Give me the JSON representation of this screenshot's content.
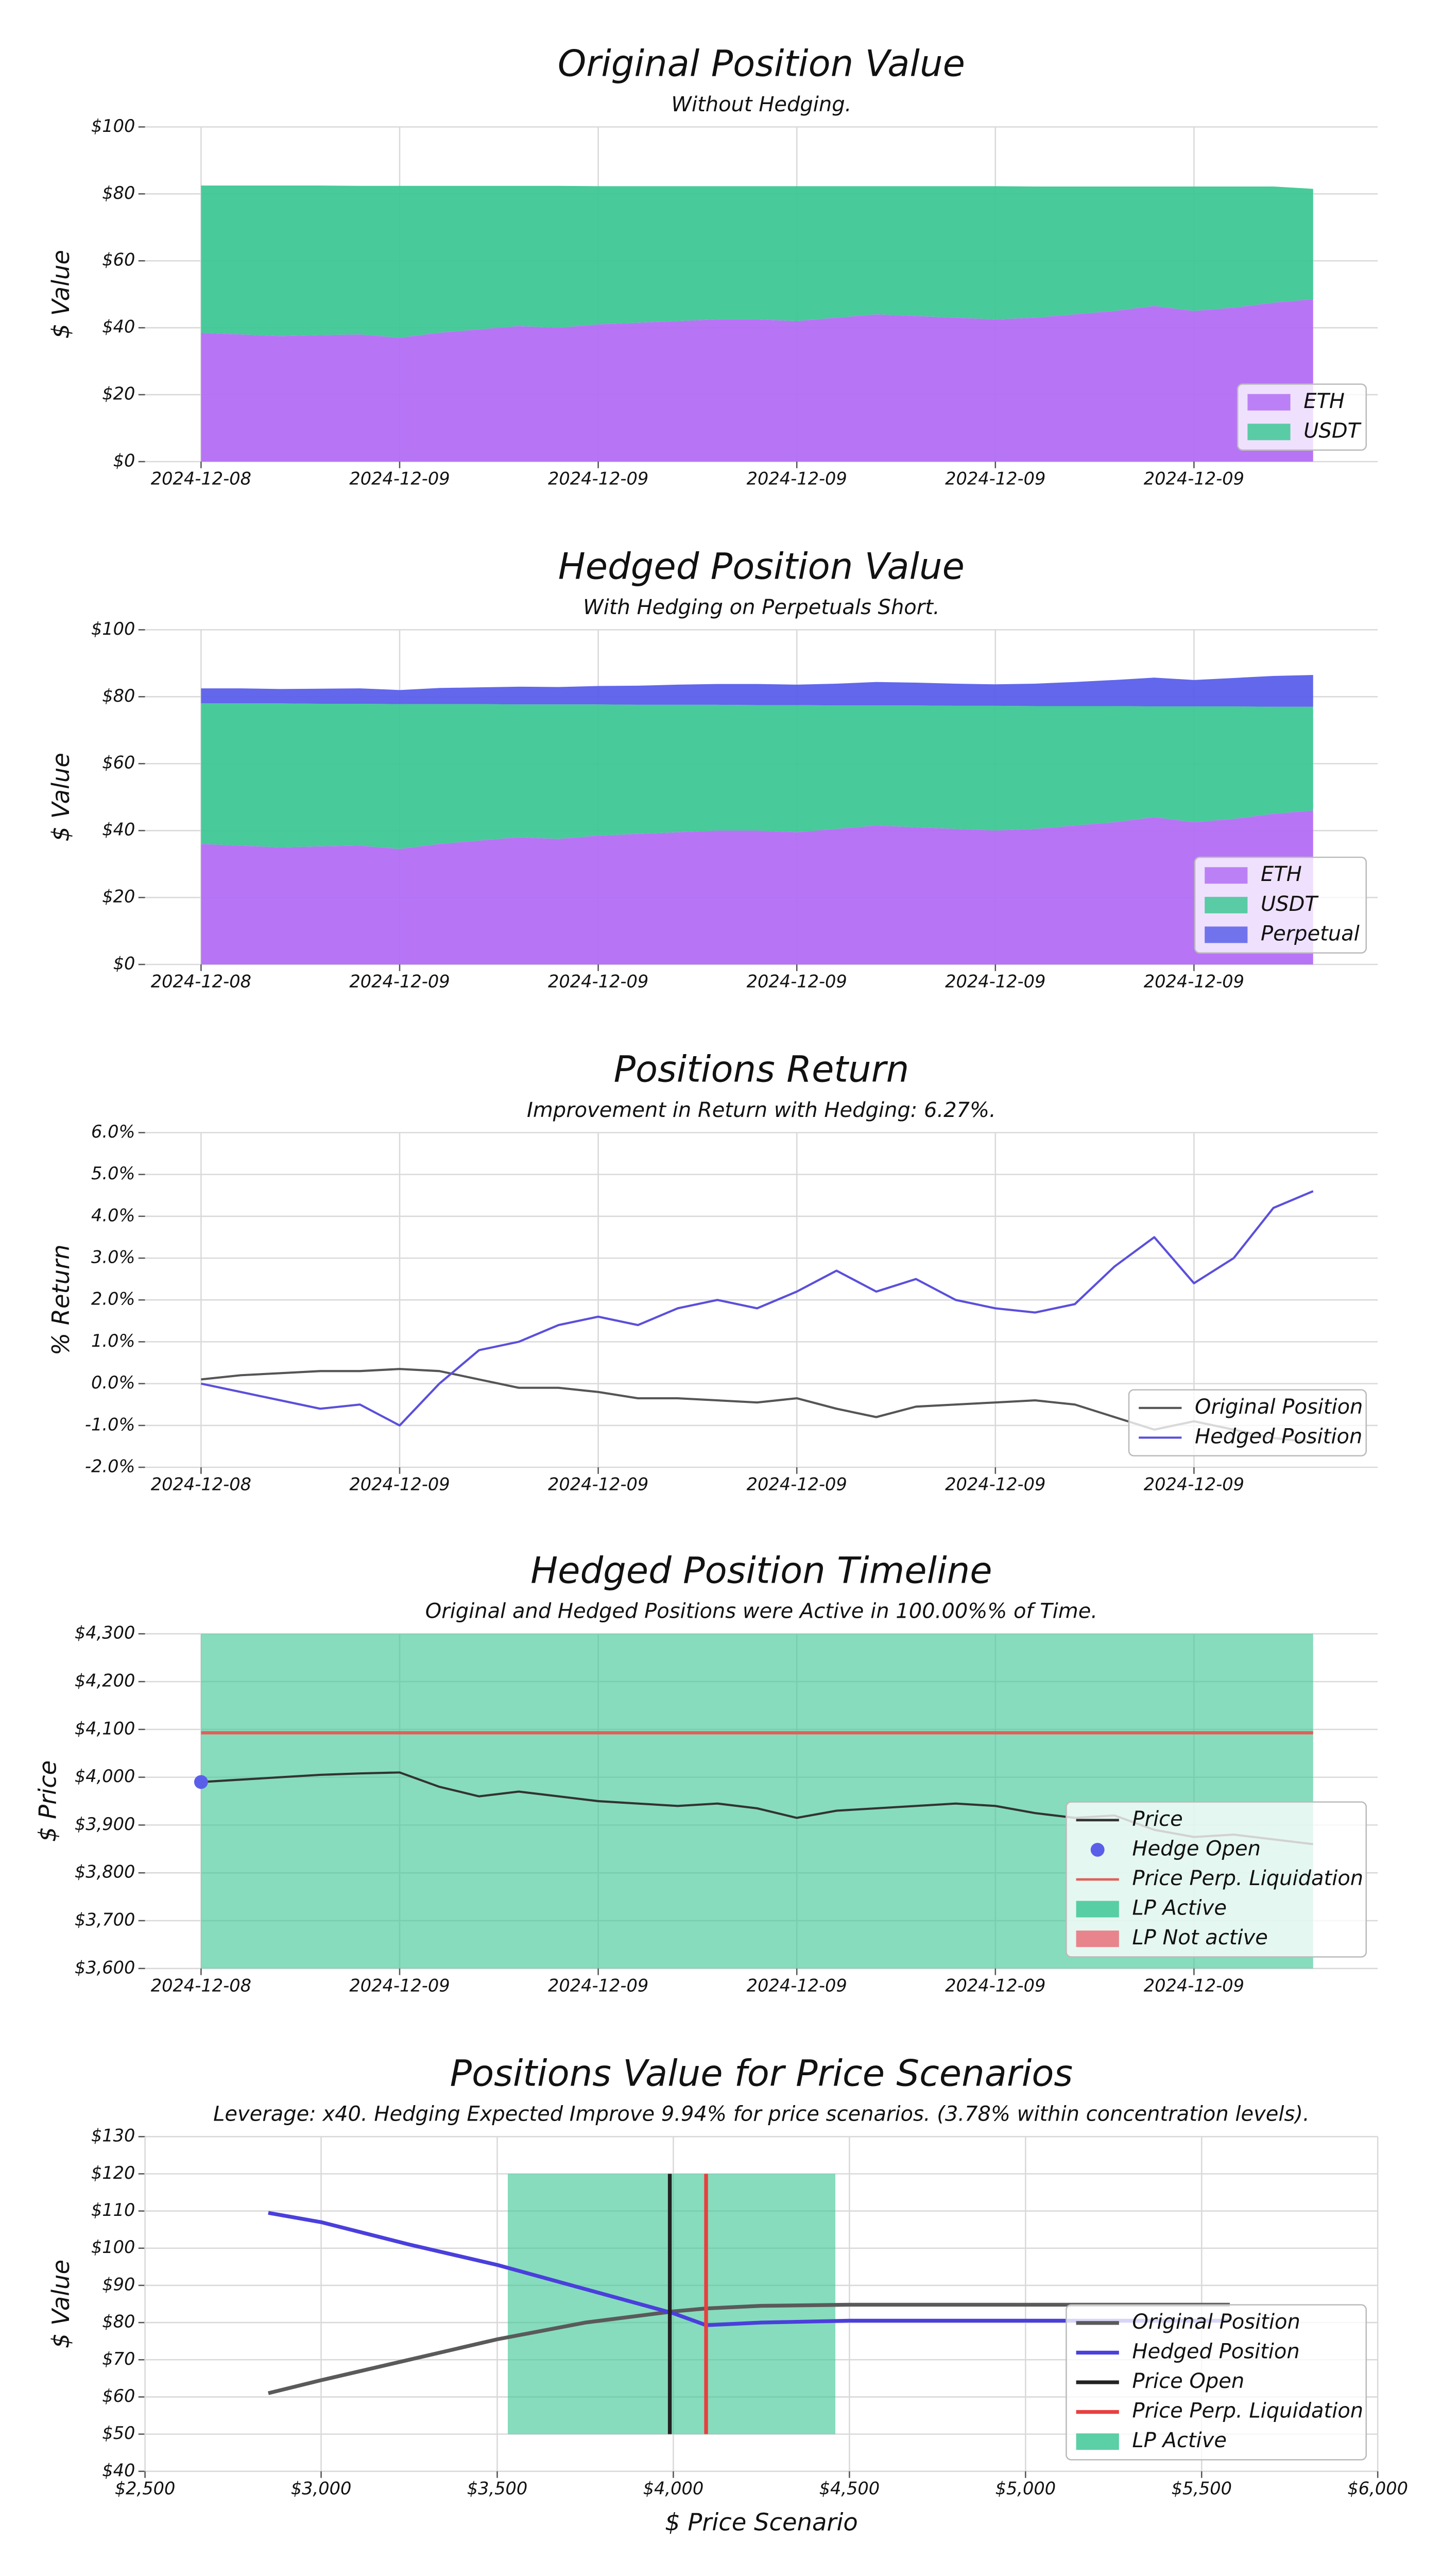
{
  "chart_data": [
    {
      "type": "area",
      "title": "Original Position Value",
      "subtitle": "Without Hedging.",
      "ylabel": "$ Value",
      "categories": [
        "2024-12-08",
        null,
        null,
        null,
        null,
        "2024-12-09",
        null,
        null,
        null,
        null,
        "2024-12-09",
        null,
        null,
        null,
        null,
        "2024-12-09",
        null,
        null,
        null,
        null,
        "2024-12-09",
        null,
        null,
        null,
        null,
        "2024-12-09",
        null,
        null,
        null
      ],
      "series": [
        {
          "name": "ETH",
          "color": "#b36ef5",
          "values": [
            38.5,
            38,
            37.5,
            37.8,
            38,
            37,
            38.5,
            39.5,
            40.5,
            40,
            41,
            41.5,
            42,
            42.5,
            42.5,
            42,
            43,
            44,
            43.5,
            43,
            42.5,
            43,
            44,
            45,
            46.5,
            45,
            46,
            47.5,
            48.5
          ]
        },
        {
          "name": "USDT",
          "color": "#3ec795",
          "values": [
            44,
            44.5,
            45,
            44.7,
            44.4,
            45.4,
            43.9,
            42.9,
            41.9,
            42.4,
            41.3,
            40.8,
            40.3,
            39.8,
            39.8,
            40.3,
            39.3,
            38.3,
            38.8,
            39.3,
            39.8,
            39.2,
            38.2,
            37.2,
            35.7,
            37.2,
            36.2,
            34.7,
            33
          ]
        }
      ],
      "ylim": [
        0,
        100
      ],
      "yticks": [
        {
          "value": 0,
          "label": "$0"
        },
        {
          "value": 20,
          "label": "$20"
        },
        {
          "value": 40,
          "label": "$40"
        },
        {
          "value": 60,
          "label": "$60"
        },
        {
          "value": 80,
          "label": "$80"
        },
        {
          "value": 100,
          "label": "$100"
        }
      ],
      "grid": true,
      "legend": "lower right"
    },
    {
      "type": "area",
      "title": "Hedged Position Value",
      "subtitle": "With Hedging on Perpetuals Short.",
      "ylabel": "$ Value",
      "categories": [
        "2024-12-08",
        null,
        null,
        null,
        null,
        "2024-12-09",
        null,
        null,
        null,
        null,
        "2024-12-09",
        null,
        null,
        null,
        null,
        "2024-12-09",
        null,
        null,
        null,
        null,
        "2024-12-09",
        null,
        null,
        null,
        null,
        "2024-12-09",
        null,
        null,
        null
      ],
      "series": [
        {
          "name": "ETH",
          "color": "#b36ef5",
          "values": [
            36,
            35.5,
            35,
            35.3,
            35.5,
            34.5,
            36,
            37,
            38,
            37.5,
            38.5,
            39,
            39.5,
            40,
            40,
            39.5,
            40.5,
            41.5,
            41,
            40.5,
            40,
            40.5,
            41.5,
            42.5,
            44,
            42.5,
            43.5,
            45,
            46
          ]
        },
        {
          "name": "USDT",
          "color": "#3ec795",
          "values": [
            42,
            42.5,
            43,
            42.6,
            42.4,
            43.3,
            41.8,
            40.8,
            39.7,
            40.2,
            39.2,
            38.6,
            38.1,
            37.6,
            37.5,
            38,
            36.9,
            35.9,
            36.4,
            36.8,
            37.3,
            36.7,
            35.7,
            34.7,
            33.1,
            34.6,
            33.6,
            32,
            31
          ]
        },
        {
          "name": "Perpetual",
          "color": "#5a5fea",
          "values": [
            4.5,
            4.5,
            4.3,
            4.5,
            4.6,
            4.2,
            4.8,
            5,
            5.3,
            5.2,
            5.5,
            5.7,
            6,
            6.2,
            6.3,
            6.1,
            6.5,
            7,
            6.8,
            6.6,
            6.4,
            6.7,
            7.2,
            7.8,
            8.6,
            7.9,
            8.5,
            9.2,
            9.5
          ]
        }
      ],
      "ylim": [
        0,
        100
      ],
      "yticks": [
        {
          "value": 0,
          "label": "$0"
        },
        {
          "value": 20,
          "label": "$20"
        },
        {
          "value": 40,
          "label": "$40"
        },
        {
          "value": 60,
          "label": "$60"
        },
        {
          "value": 80,
          "label": "$80"
        },
        {
          "value": 100,
          "label": "$100"
        }
      ],
      "grid": true,
      "legend": "lower right"
    },
    {
      "type": "line",
      "title": "Positions Return",
      "subtitle": "Improvement in Return with Hedging: 6.27%.",
      "ylabel": "% Return",
      "categories": [
        "2024-12-08",
        null,
        null,
        null,
        null,
        "2024-12-09",
        null,
        null,
        null,
        null,
        "2024-12-09",
        null,
        null,
        null,
        null,
        "2024-12-09",
        null,
        null,
        null,
        null,
        "2024-12-09",
        null,
        null,
        null,
        null,
        "2024-12-09",
        null,
        null,
        null
      ],
      "series": [
        {
          "name": "Original Position",
          "color": "#555555",
          "values": [
            0.1,
            0.2,
            0.25,
            0.3,
            0.3,
            0.35,
            0.3,
            0.1,
            -0.1,
            -0.1,
            -0.2,
            -0.35,
            -0.35,
            -0.4,
            -0.45,
            -0.35,
            -0.6,
            -0.8,
            -0.55,
            -0.5,
            -0.45,
            -0.4,
            -0.5,
            -0.8,
            -1.1,
            -0.9,
            -1.1,
            -1.3,
            -1.4
          ]
        },
        {
          "name": "Hedged Position",
          "color": "#5a4fdc",
          "values": [
            0,
            -0.2,
            -0.4,
            -0.6,
            -0.5,
            -1.0,
            0,
            0.8,
            1.0,
            1.4,
            1.6,
            1.4,
            1.8,
            2.0,
            1.8,
            2.2,
            2.7,
            2.2,
            2.5,
            2.0,
            1.8,
            1.7,
            1.9,
            2.8,
            3.5,
            2.4,
            3.0,
            4.2,
            4.6
          ]
        }
      ],
      "ylim": [
        -2,
        6
      ],
      "yticks": [
        {
          "value": -2,
          "label": "-2.0%"
        },
        {
          "value": -1,
          "label": "-1.0%"
        },
        {
          "value": 0,
          "label": "0.0%"
        },
        {
          "value": 1,
          "label": "1.0%"
        },
        {
          "value": 2,
          "label": "2.0%"
        },
        {
          "value": 3,
          "label": "3.0%"
        },
        {
          "value": 4,
          "label": "4.0%"
        },
        {
          "value": 5,
          "label": "5.0%"
        },
        {
          "value": 6,
          "label": "6.0%"
        }
      ],
      "grid": true,
      "legend": "lower right"
    },
    {
      "type": "timeline",
      "title": "Hedged Position Timeline",
      "subtitle": "Original and Hedged Positions were Active in 100.00%% of Time.",
      "ylabel": "$ Price",
      "categories": [
        "2024-12-08",
        null,
        null,
        null,
        null,
        "2024-12-09",
        null,
        null,
        null,
        null,
        "2024-12-09",
        null,
        null,
        null,
        null,
        "2024-12-09",
        null,
        null,
        null,
        null,
        "2024-12-09",
        null,
        null,
        null,
        null,
        "2024-12-09",
        null,
        null,
        null
      ],
      "series": [
        {
          "name": "Price",
          "color": "#333333",
          "values": [
            3990,
            3995,
            4000,
            4005,
            4008,
            4010,
            3980,
            3960,
            3970,
            3960,
            3950,
            3945,
            3940,
            3945,
            3935,
            3915,
            3930,
            3935,
            3940,
            3945,
            3940,
            3925,
            3915,
            3920,
            3890,
            3875,
            3880,
            3870,
            3860
          ]
        }
      ],
      "hedge_open": {
        "name": "Hedge Open",
        "color": "#5a5fea",
        "value": 3990
      },
      "liquidation": {
        "name": "Price Perp. Liquidation",
        "color": "#e0605a",
        "value": 4093
      },
      "lp_active": {
        "name": "LP Active",
        "color": "#3ec795"
      },
      "lp_not_active": {
        "name": "LP Not active",
        "color": "#e8707a"
      },
      "ylim": [
        3600,
        4300
      ],
      "yticks": [
        {
          "value": 3600,
          "label": "$3,600"
        },
        {
          "value": 3700,
          "label": "$3,700"
        },
        {
          "value": 3800,
          "label": "$3,800"
        },
        {
          "value": 3900,
          "label": "$3,900"
        },
        {
          "value": 4000,
          "label": "$4,000"
        },
        {
          "value": 4100,
          "label": "$4,100"
        },
        {
          "value": 4200,
          "label": "$4,200"
        },
        {
          "value": 4300,
          "label": "$4,300"
        }
      ],
      "grid": true,
      "legend": "lower right"
    },
    {
      "type": "scenario",
      "title": "Positions Value for Price Scenarios",
      "subtitle": "Leverage: x40. Hedging Expected Improve 9.94% for price scenarios. (3.78% within concentration levels).",
      "ylabel": "$ Value",
      "xlabel": "$ Price Scenario",
      "x": [
        2850,
        3000,
        3250,
        3500,
        3750,
        4000,
        4093,
        4250,
        4500,
        5000,
        5580
      ],
      "series": [
        {
          "name": "Original Position",
          "color": "#5a5a5a",
          "values": [
            61,
            64.5,
            70,
            75.5,
            80,
            83,
            83.8,
            84.5,
            84.8,
            84.8,
            84.8
          ]
        },
        {
          "name": "Hedged Position",
          "color": "#4a3fdc",
          "values": [
            109.5,
            107,
            101,
            95.5,
            89,
            82.5,
            79.3,
            80,
            80.5,
            80.5,
            80.5
          ]
        }
      ],
      "price_open": {
        "name": "Price Open",
        "color": "#222222",
        "value": 3990
      },
      "liquidation": {
        "name": "Price Perp. Liquidation",
        "color": "#e84040",
        "value": 4093
      },
      "lp_active": {
        "name": "LP Active",
        "color": "#3ec795",
        "range": [
          3530,
          4460
        ]
      },
      "span_ylim": [
        50,
        120
      ],
      "xlim": [
        2500,
        6000
      ],
      "xticks": [
        {
          "value": 2500,
          "label": "$2,500"
        },
        {
          "value": 3000,
          "label": "$3,000"
        },
        {
          "value": 3500,
          "label": "$3,500"
        },
        {
          "value": 4000,
          "label": "$4,000"
        },
        {
          "value": 4500,
          "label": "$4,500"
        },
        {
          "value": 5000,
          "label": "$5,000"
        },
        {
          "value": 5500,
          "label": "$5,500"
        },
        {
          "value": 6000,
          "label": "$6,000"
        }
      ],
      "ylim": [
        40,
        130
      ],
      "yticks": [
        {
          "value": 40,
          "label": "$40"
        },
        {
          "value": 50,
          "label": "$50"
        },
        {
          "value": 60,
          "label": "$60"
        },
        {
          "value": 70,
          "label": "$70"
        },
        {
          "value": 80,
          "label": "$80"
        },
        {
          "value": 90,
          "label": "$90"
        },
        {
          "value": 100,
          "label": "$100"
        },
        {
          "value": 110,
          "label": "$110"
        },
        {
          "value": 120,
          "label": "$120"
        },
        {
          "value": 130,
          "label": "$130"
        }
      ],
      "grid": true,
      "legend": "lower right"
    }
  ]
}
